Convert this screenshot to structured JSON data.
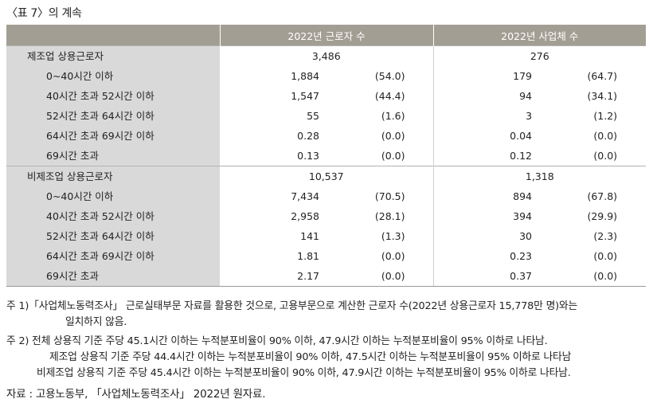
{
  "title": "〈표 7〉의 계속",
  "headers": {
    "workers": "2022년 근로자 수",
    "firms": "2022년 사업체 수"
  },
  "groups": [
    {
      "label": "제조업 상용근로자",
      "workers_total": "3,486",
      "firms_total": "276",
      "rows": [
        {
          "label": "0~40시간 이하",
          "w": "1,884",
          "wp": "(54.0)",
          "f": "179",
          "fp": "(64.7)"
        },
        {
          "label": "40시간 초과 52시간 이하",
          "w": "1,547",
          "wp": "(44.4)",
          "f": "94",
          "fp": "(34.1)"
        },
        {
          "label": "52시간 초과 64시간 이하",
          "w": "55",
          "wp": "(1.6)",
          "f": "3",
          "fp": "(1.2)"
        },
        {
          "label": "64시간 초과 69시간 이하",
          "w": "0.28",
          "wp": "(0.0)",
          "f": "0.04",
          "fp": "(0.0)"
        },
        {
          "label": "69시간 초과",
          "w": "0.13",
          "wp": "(0.0)",
          "f": "0.12",
          "fp": "(0.0)"
        }
      ]
    },
    {
      "label": "비제조업 상용근로자",
      "workers_total": "10,537",
      "firms_total": "1,318",
      "rows": [
        {
          "label": "0~40시간 이하",
          "w": "7,434",
          "wp": "(70.5)",
          "f": "894",
          "fp": "(67.8)"
        },
        {
          "label": "40시간 초과 52시간 이하",
          "w": "2,958",
          "wp": "(28.1)",
          "f": "394",
          "fp": "(29.9)"
        },
        {
          "label": "52시간 초과 64시간 이하",
          "w": "141",
          "wp": "(1.3)",
          "f": "30",
          "fp": "(2.3)"
        },
        {
          "label": "64시간 초과 69시간 이하",
          "w": "1.81",
          "wp": "(0.0)",
          "f": "0.23",
          "fp": "(0.0)"
        },
        {
          "label": "69시간 초과",
          "w": "2.17",
          "wp": "(0.0)",
          "f": "0.37",
          "fp": "(0.0)"
        }
      ]
    }
  ],
  "notes": {
    "note1_line1": "주 1)「사업체노동력조사」 근로실태부문 자료를 활용한 것으로, 고용부문으로 계산한 근로자 수(2022년 상용근로자 15,778만 명)와는",
    "note1_line2": "일치하지 않음.",
    "note2_line1": "주 2) 전체 상용직 기준 주당 45.1시간 이하는 누적분포비율이 90% 이하, 47.9시간 이하는 누적분포비율이 95% 이하로 나타남.",
    "note2_line2": "제조업 상용직 기준 주당 44.4시간 이하는 누적분포비율이 90% 이하, 47.5시간 이하는 누적분포비율이 95% 이하로 나타남",
    "note2_line3": "비제조업 상용직 기준 주당 45.4시간 이하는 누적분포비율이 90% 이하, 47.9시간 이하는 누적분포비율이 95% 이하로 나타남.",
    "source": "자료 : 고용노동부, 「사업체노동력조사」 2022년 원자료."
  }
}
